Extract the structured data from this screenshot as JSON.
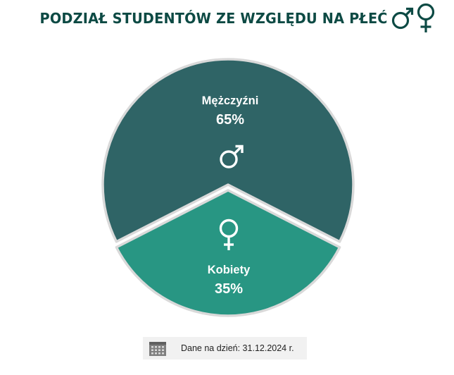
{
  "title": "PODZIAŁ STUDENTÓW ZE WZGLĘDU NA PŁEĆ",
  "title_icons": [
    "male-symbol-icon",
    "female-symbol-icon"
  ],
  "chart_data": {
    "type": "pie",
    "title": "PODZIAŁ STUDENTÓW ZE WZGLĘDU NA PŁEĆ",
    "slices": [
      {
        "label": "Mężczyźni",
        "value": 65,
        "display": "65%",
        "color": "#2f6466",
        "icon": "male-symbol-icon"
      },
      {
        "label": "Kobiety",
        "value": 35,
        "display": "35%",
        "color": "#289683",
        "icon": "female-symbol-icon",
        "exploded": true
      }
    ]
  },
  "footer": {
    "icon": "calendar-icon",
    "text": "Dane na dzień: 31.12.2024 r."
  },
  "colors": {
    "title": "#0d4a44",
    "male": "#2f6466",
    "female": "#289683",
    "outline": "#d9d9d9"
  }
}
